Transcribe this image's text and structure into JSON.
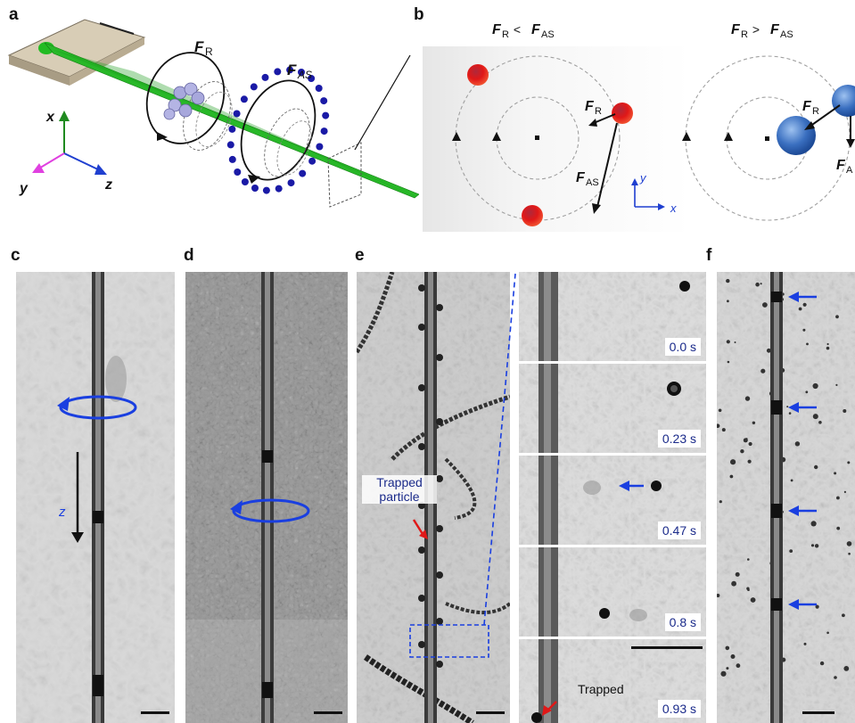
{
  "panel_labels": {
    "a": "a",
    "b": "b",
    "c": "c",
    "d": "d",
    "e": "e",
    "f": "f"
  },
  "panel_a": {
    "force_r_label": "F",
    "force_r_sub": "R",
    "force_as_label": "F",
    "force_as_sub": "AS",
    "axes": {
      "x": "x",
      "y": "y",
      "z": "z"
    },
    "colors": {
      "fiber": "#22bb22",
      "x_axis": "#1f8a1f",
      "y_axis": "#e040e0",
      "z_axis": "#1f3fd0",
      "particles_light": "#b0b0e0",
      "particles_dark": "#1a1aa0"
    }
  },
  "panel_b": {
    "left_title": "F_R < F_AS",
    "right_title": "F_R > F_AS",
    "left_title_parts": {
      "f1": "F",
      "s1": "R",
      "op": " < ",
      "f2": "F",
      "s2": "AS"
    },
    "right_title_parts": {
      "f1": "F",
      "s1": "R",
      "op": " > ",
      "f2": "F",
      "s2": "AS"
    },
    "fr_label": {
      "f": "F",
      "s": "R"
    },
    "fas_label": {
      "f": "F",
      "s": "AS"
    },
    "fa_cut_label": {
      "f": "F",
      "s": "A"
    },
    "axis_y": "y",
    "axis_x": "x",
    "colors": {
      "red_particle": "#e01818",
      "blue_particle": "#3a6fc0",
      "axis_arrow": "#1f3fd0"
    }
  },
  "panel_c": {
    "axis_label": "z",
    "rotation_color": "#1a3fe0"
  },
  "panel_e": {
    "trapped_annotation_line1": "Trapped",
    "trapped_annotation_line2": "particle",
    "timepoints": [
      "0.0 s",
      "0.23 s",
      "0.47 s",
      "0.8 s",
      "0.93 s"
    ],
    "trapped_label": "Trapped"
  },
  "panel_f": {
    "arrow_count": 4,
    "arrow_color": "#1a3fe0"
  }
}
